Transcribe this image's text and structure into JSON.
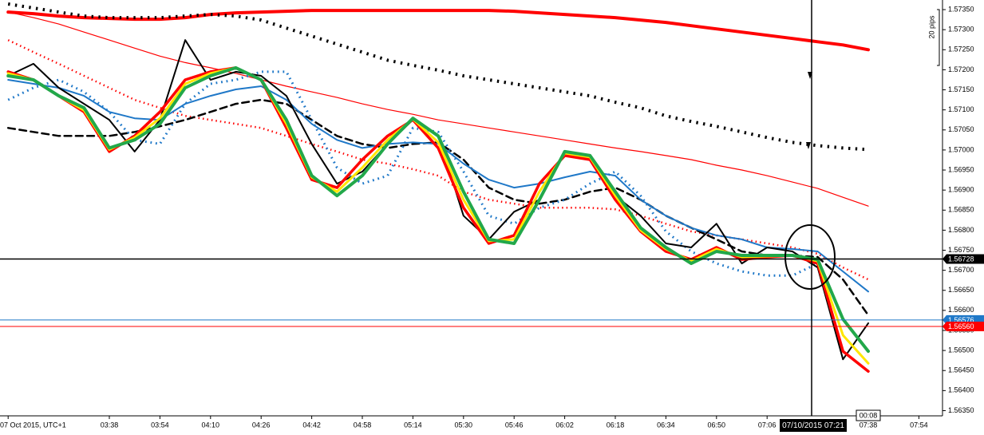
{
  "chart_data": {
    "type": "line",
    "categories": [
      "07 Oct 2015, UTC+1",
      null,
      null,
      null,
      "03:38",
      null,
      "03:54",
      null,
      "04:10",
      null,
      "04:26",
      null,
      "04:42",
      null,
      "04:58",
      null,
      "05:14",
      null,
      "05:30",
      null,
      "05:46",
      null,
      "06:02",
      null,
      "06:18",
      null,
      "06:34",
      null,
      "06:50",
      null,
      "07:06",
      null,
      null,
      null,
      "07:38",
      null,
      "07:54"
    ],
    "ylim": [
      1.56339,
      1.57374
    ],
    "yticks": [
      {
        "value": 1.5635,
        "label": "1.56350"
      },
      {
        "value": 1.564,
        "label": "1.56400"
      },
      {
        "value": 1.5645,
        "label": "1.56450"
      },
      {
        "value": 1.565,
        "label": "1.56500"
      },
      {
        "value": 1.5655,
        "label": "1.56550"
      },
      {
        "value": 1.566,
        "label": "1.56600"
      },
      {
        "value": 1.5665,
        "label": "1.56650"
      },
      {
        "value": 1.567,
        "label": "1.56700"
      },
      {
        "value": 1.5675,
        "label": "1.56750"
      },
      {
        "value": 1.568,
        "label": "1.56800"
      },
      {
        "value": 1.5685,
        "label": "1.56850"
      },
      {
        "value": 1.569,
        "label": "1.56900"
      },
      {
        "value": 1.5695,
        "label": "1.56950"
      },
      {
        "value": 1.57,
        "label": "1.57000"
      },
      {
        "value": 1.5705,
        "label": "1.57050"
      },
      {
        "value": 1.571,
        "label": "1.57100"
      },
      {
        "value": 1.5715,
        "label": "1.57150"
      },
      {
        "value": 1.572,
        "label": "1.57200"
      },
      {
        "value": 1.5725,
        "label": "1.57250"
      },
      {
        "value": 1.573,
        "label": "1.57300"
      },
      {
        "value": 1.5735,
        "label": "1.57350"
      }
    ],
    "series": [
      {
        "color": "#ff0000",
        "style": "solid",
        "width": 1.2,
        "values": [
          1.57344,
          1.5733,
          1.57314,
          1.57294,
          1.57274,
          1.57254,
          1.57234,
          1.57218,
          1.57205,
          1.57191,
          1.57175,
          1.57159,
          1.57145,
          1.57131,
          1.57115,
          1.57101,
          1.57089,
          1.57075,
          1.57065,
          1.57055,
          1.57045,
          1.57035,
          1.57025,
          1.57015,
          1.57005,
          1.56996,
          1.56986,
          1.56976,
          1.56962,
          1.5695,
          1.56936,
          1.5692,
          1.56904,
          1.56882,
          1.5686,
          null,
          null
        ]
      },
      {
        "color": "#ff0000",
        "style": "solid",
        "width": 4,
        "values": [
          1.57344,
          1.5734,
          1.57334,
          1.5733,
          1.57328,
          1.57326,
          1.57326,
          1.5733,
          1.57338,
          1.57342,
          1.57344,
          1.57346,
          1.57348,
          1.57348,
          1.57348,
          1.57348,
          1.57348,
          1.57348,
          1.57348,
          1.57348,
          1.57346,
          1.57342,
          1.57338,
          1.57334,
          1.5733,
          1.57324,
          1.57318,
          1.5731,
          1.57302,
          1.57294,
          1.57286,
          1.57278,
          1.5727,
          1.57262,
          1.5725,
          null,
          null
        ]
      },
      {
        "color": "#000000",
        "style": "dotted",
        "width": 4,
        "values": [
          1.57364,
          1.57354,
          1.57344,
          1.57334,
          1.5733,
          1.5733,
          1.5733,
          1.57334,
          1.57338,
          1.57334,
          1.57324,
          1.57304,
          1.57284,
          1.57264,
          1.57244,
          1.57224,
          1.57211,
          1.57199,
          1.57185,
          1.57175,
          1.57165,
          1.57155,
          1.57145,
          1.57135,
          1.57119,
          1.57105,
          1.57085,
          1.57071,
          1.57059,
          1.57045,
          1.57031,
          1.57019,
          1.57011,
          1.57005,
          1.57001,
          null,
          null
        ]
      },
      {
        "color": "#ff0000",
        "style": "dotted",
        "width": 2.5,
        "values": [
          1.57274,
          1.57244,
          1.57215,
          1.57185,
          1.57155,
          1.57125,
          1.57105,
          1.57085,
          1.57075,
          1.57065,
          1.57055,
          1.57035,
          1.57015,
          1.56996,
          1.56976,
          1.56966,
          1.56952,
          1.56936,
          1.56896,
          1.56876,
          1.56866,
          1.56856,
          1.56856,
          1.56856,
          1.56852,
          1.56836,
          1.56816,
          1.56797,
          1.56787,
          1.56777,
          1.56767,
          1.56757,
          1.56741,
          1.56707,
          1.56677,
          null,
          null
        ]
      },
      {
        "color": "#000000",
        "style": "dashed",
        "width": 2.5,
        "values": [
          1.57055,
          1.57045,
          1.57035,
          1.57035,
          1.57035,
          1.57045,
          1.57059,
          1.57075,
          1.57095,
          1.57115,
          1.57125,
          1.57115,
          1.57075,
          1.57035,
          1.57015,
          1.57005,
          1.57015,
          1.57019,
          1.56976,
          1.56906,
          1.56876,
          1.56866,
          1.56876,
          1.56896,
          1.56906,
          1.56876,
          1.56836,
          1.56806,
          1.56777,
          1.56747,
          1.56737,
          1.56737,
          1.56733,
          1.56677,
          1.56588,
          null,
          null
        ]
      },
      {
        "color": "#1f78c8",
        "style": "dotted",
        "width": 3,
        "values": [
          1.57125,
          1.57155,
          1.57175,
          1.57145,
          1.57095,
          1.57025,
          1.57015,
          1.57115,
          1.57165,
          1.57175,
          1.57195,
          1.57195,
          1.57075,
          1.56956,
          1.56916,
          1.56936,
          1.57055,
          1.57045,
          1.56946,
          1.56836,
          1.56816,
          1.56856,
          1.56876,
          1.56916,
          1.56946,
          1.56886,
          1.56797,
          1.56747,
          1.56717,
          1.56697,
          1.56687,
          1.56687,
          1.56717,
          null,
          null,
          null,
          null
        ]
      },
      {
        "color": "#1f78c8",
        "style": "solid",
        "width": 2,
        "values": [
          1.57175,
          1.57165,
          1.57155,
          1.57135,
          1.57095,
          1.57079,
          1.57075,
          1.57115,
          1.57135,
          1.57151,
          1.57159,
          1.57125,
          1.57065,
          1.57025,
          1.57005,
          1.57015,
          1.57019,
          1.57015,
          1.56966,
          1.56926,
          1.56906,
          1.56916,
          1.56932,
          1.56946,
          1.56936,
          1.56876,
          1.56836,
          1.56806,
          1.56787,
          1.56777,
          1.56757,
          1.56753,
          1.56747,
          1.56697,
          1.56647,
          null,
          null
        ]
      },
      {
        "color": "#000000",
        "style": "solid",
        "width": 2,
        "values": [
          1.57185,
          1.57215,
          1.57155,
          1.57115,
          1.57075,
          1.56996,
          1.57075,
          1.57274,
          1.57175,
          1.57195,
          1.57185,
          1.57135,
          1.57015,
          1.56916,
          1.56946,
          1.57015,
          1.57075,
          1.57035,
          1.56836,
          1.56777,
          1.56846,
          1.56876,
          1.56996,
          1.56976,
          1.56886,
          1.56836,
          1.56767,
          1.56757,
          1.56816,
          1.56717,
          1.56757,
          1.56747,
          1.56707,
          1.56478,
          1.56568,
          null,
          null
        ]
      },
      {
        "color": "#ff0000",
        "style": "solid",
        "width": 3.5,
        "values": [
          1.57195,
          1.57175,
          1.57135,
          1.57095,
          1.56996,
          1.57035,
          1.57095,
          1.57175,
          1.57195,
          1.57205,
          1.57175,
          1.57055,
          1.56926,
          1.56906,
          1.56976,
          1.57035,
          1.57075,
          1.57005,
          1.56856,
          1.56767,
          1.56787,
          1.56916,
          1.56986,
          1.56976,
          1.56876,
          1.56797,
          1.56747,
          1.56727,
          1.56757,
          1.56727,
          1.56733,
          1.56737,
          1.56717,
          1.56498,
          1.56448,
          null,
          null
        ]
      },
      {
        "color": "#ffe600",
        "style": "solid",
        "width": 3,
        "values": [
          1.57191,
          1.57175,
          1.57135,
          1.57099,
          1.57001,
          1.57031,
          1.57079,
          1.57165,
          1.57191,
          1.57205,
          1.57175,
          1.57065,
          1.56932,
          1.56896,
          1.56956,
          1.57025,
          1.57077,
          1.57019,
          1.56876,
          1.56773,
          1.56777,
          1.56896,
          1.56992,
          1.56982,
          1.56886,
          1.568,
          1.56753,
          1.56723,
          1.56753,
          1.56733,
          1.56735,
          1.56737,
          1.56723,
          1.56538,
          1.56468,
          null,
          null
        ]
      },
      {
        "color": "#22a84a",
        "style": "solid",
        "width": 4,
        "values": [
          1.57185,
          1.57175,
          1.57135,
          1.57105,
          1.57005,
          1.57025,
          1.57065,
          1.57155,
          1.57185,
          1.57205,
          1.57175,
          1.57075,
          1.56936,
          1.56886,
          1.56936,
          1.57015,
          1.57079,
          1.57035,
          1.56896,
          1.56777,
          1.56767,
          1.56876,
          1.56996,
          1.56986,
          1.56896,
          1.56806,
          1.56757,
          1.56717,
          1.56747,
          1.56737,
          1.56737,
          1.56737,
          1.56727,
          1.56578,
          1.56498,
          null,
          null
        ]
      }
    ],
    "price_lines": [
      {
        "price": 1.56728,
        "color": "#000000"
      },
      {
        "price": 1.56576,
        "color": "#1f78c8"
      },
      {
        "price": {
          "value": 1.5656,
          "label": "1.56560"
        },
        "color": "#ff0000"
      }
    ],
    "crosshair_time": "07/10/2015 07:21",
    "countdown": "00:08",
    "scale_label": "20 pips"
  }
}
